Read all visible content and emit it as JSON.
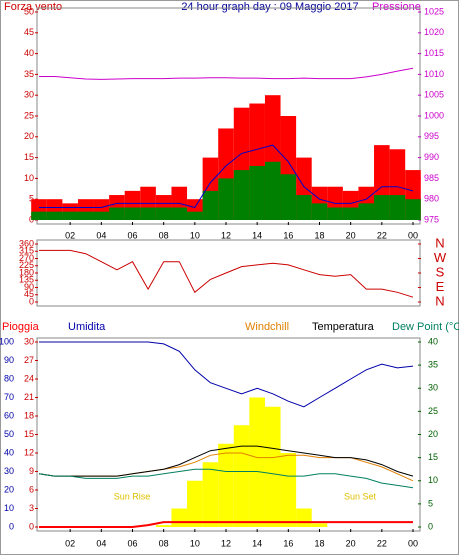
{
  "chart_data": [
    {
      "type": "combo",
      "title": "24 hour graph day : 09 Maggio 2017",
      "y_label": "Forza vento",
      "y2_label": "Pressione",
      "x": [
        0,
        1,
        2,
        3,
        4,
        5,
        6,
        7,
        8,
        9,
        10,
        11,
        12,
        13,
        14,
        15,
        16,
        17,
        18,
        19,
        20,
        21,
        22,
        23,
        24
      ],
      "xlim": [
        0,
        24
      ],
      "xticks": [
        {
          "value": 2,
          "label": "02"
        },
        {
          "value": 4,
          "label": "04"
        },
        {
          "value": 6,
          "label": "06"
        },
        {
          "value": 8,
          "label": "08"
        },
        10,
        12,
        14,
        16,
        18,
        20,
        22,
        {
          "value": 24,
          "label": "00"
        }
      ],
      "ylim": [
        0,
        50
      ],
      "yticks": [
        0,
        5,
        10,
        15,
        20,
        25,
        30,
        35,
        40,
        45,
        50
      ],
      "y2lim": [
        975,
        1025
      ],
      "y2ticks": [
        975,
        980,
        985,
        990,
        995,
        1000,
        1005,
        1010,
        1015,
        1020,
        1025
      ],
      "series": [
        {
          "kind": "bar",
          "color": "#ff0000",
          "values": [
            5,
            5,
            4,
            5,
            5,
            6,
            7,
            8,
            6,
            8,
            5,
            15,
            22,
            27,
            28,
            30,
            25,
            15,
            8,
            8,
            7,
            8,
            18,
            17,
            12
          ]
        },
        {
          "kind": "bar",
          "color": "#008000",
          "values": [
            2,
            2,
            2,
            2,
            2,
            3,
            3,
            3,
            3,
            3,
            2,
            7,
            10,
            12,
            13,
            14,
            11,
            6,
            4,
            3,
            3,
            4,
            6,
            6,
            5
          ]
        },
        {
          "kind": "line",
          "color": "#0000cc",
          "values": [
            3,
            3,
            3,
            3,
            3,
            4,
            4,
            4,
            4,
            4,
            3,
            9,
            13,
            16,
            17,
            18,
            14,
            8,
            5,
            4,
            4,
            5,
            8,
            8,
            7
          ]
        },
        {
          "kind": "line",
          "color": "#cc00cc",
          "axis": "y2",
          "values": [
            1009.5,
            1009.5,
            1009.2,
            1008.9,
            1008.8,
            1008.9,
            1009,
            1009,
            1009,
            1009.1,
            1009.1,
            1009.2,
            1009.2,
            1009.1,
            1009.1,
            1009,
            1009,
            1009.1,
            1009,
            1009,
            1009,
            1009.4,
            1010,
            1010.8,
            1011.5
          ]
        }
      ]
    },
    {
      "type": "combo",
      "x": [
        0,
        1,
        2,
        3,
        4,
        5,
        6,
        7,
        8,
        9,
        10,
        11,
        12,
        13,
        14,
        15,
        16,
        17,
        18,
        19,
        20,
        21,
        22,
        23,
        24
      ],
      "xlim": [
        0,
        24
      ],
      "ylim": [
        0,
        360
      ],
      "yticks": [
        0,
        45,
        90,
        135,
        180,
        225,
        270,
        315,
        360
      ],
      "y2lim": [
        0,
        360
      ],
      "y2ticks": [
        {
          "value": 0,
          "label": "N"
        },
        {
          "value": 90,
          "label": "E"
        },
        {
          "value": 180,
          "label": "S"
        },
        {
          "value": 270,
          "label": "W"
        },
        {
          "value": 360,
          "label": "N"
        }
      ],
      "series": [
        {
          "kind": "line",
          "color": "#cc0000",
          "values": [
            320,
            320,
            320,
            300,
            250,
            200,
            250,
            80,
            250,
            250,
            60,
            140,
            180,
            220,
            230,
            240,
            230,
            200,
            170,
            160,
            170,
            80,
            80,
            60,
            30
          ]
        }
      ]
    },
    {
      "type": "combo",
      "annotations": [
        "Sun Rise",
        "Sun Set"
      ],
      "x": [
        0,
        1,
        2,
        3,
        4,
        5,
        6,
        7,
        8,
        9,
        10,
        11,
        12,
        13,
        14,
        15,
        16,
        17,
        18,
        19,
        20,
        21,
        22,
        23,
        24
      ],
      "xlim": [
        0,
        24
      ],
      "xticks": [
        {
          "value": 2,
          "label": "02"
        },
        {
          "value": 4,
          "label": "04"
        },
        {
          "value": 6,
          "label": "06"
        },
        {
          "value": 8,
          "label": "08"
        },
        10,
        12,
        14,
        16,
        18,
        20,
        22,
        {
          "value": 24,
          "label": "00"
        }
      ],
      "ylim": [
        0,
        100
      ],
      "yticks": [
        0,
        10,
        20,
        30,
        40,
        50,
        60,
        70,
        80,
        90,
        100
      ],
      "y3lim": [
        0,
        30
      ],
      "y3ticks": [
        0,
        3,
        6,
        9,
        12,
        15,
        18,
        21,
        24,
        27,
        30
      ],
      "y2lim": [
        0,
        40
      ],
      "y2ticks": [
        0,
        5,
        10,
        15,
        20,
        25,
        30,
        35,
        40
      ],
      "series": [
        {
          "kind": "bar",
          "color": "#ffff00",
          "values": [
            0,
            0,
            0,
            0,
            0,
            0,
            0,
            0,
            1,
            10,
            25,
            35,
            45,
            55,
            70,
            65,
            40,
            10,
            2,
            0,
            0,
            0,
            0,
            0,
            0
          ]
        },
        {
          "name": "Pioggia",
          "kind": "line",
          "color": "#ff0000",
          "axis": "y3",
          "values": [
            0,
            0,
            0,
            0,
            0,
            0,
            0,
            0.3,
            0.8,
            0.8,
            0.8,
            0.8,
            0.8,
            0.8,
            0.8,
            0.8,
            0.8,
            0.8,
            0.8,
            0.8,
            0.8,
            0.8,
            0.8,
            0.8,
            0.8
          ]
        },
        {
          "name": "Umidita",
          "kind": "line",
          "color": "#0000aa",
          "values": [
            100,
            100,
            100,
            100,
            100,
            100,
            100,
            100,
            99,
            95,
            85,
            78,
            75,
            72,
            75,
            72,
            68,
            65,
            70,
            75,
            80,
            85,
            88,
            86,
            87
          ]
        },
        {
          "name": "Windchill",
          "kind": "line",
          "color": "#e08000",
          "axis": "y2",
          "values": [
            11.5,
            11,
            11,
            11,
            11,
            11,
            11.5,
            12,
            12.5,
            13,
            14,
            15.5,
            16,
            16,
            15,
            15,
            15.5,
            15.5,
            15,
            15,
            15,
            14,
            13,
            11.5,
            10
          ]
        },
        {
          "name": "Temperatura",
          "kind": "line",
          "color": "#000000",
          "axis": "y2",
          "values": [
            11.5,
            11,
            11,
            11,
            11,
            11,
            11.5,
            12,
            12.5,
            13.5,
            15,
            16.5,
            17,
            17.5,
            17.5,
            17,
            16.5,
            16,
            15.5,
            15,
            15,
            14.5,
            13.5,
            12,
            11
          ]
        },
        {
          "name": "Dew Point (°C",
          "kind": "line",
          "color": "#008060",
          "axis": "y2",
          "values": [
            11.5,
            11,
            11,
            10.5,
            10.5,
            10.5,
            11,
            11,
            11.5,
            12,
            12.5,
            12.5,
            12,
            12,
            12,
            11.5,
            11,
            11,
            11.5,
            11.5,
            11,
            10.5,
            9.5,
            9,
            8.5
          ]
        }
      ]
    }
  ]
}
